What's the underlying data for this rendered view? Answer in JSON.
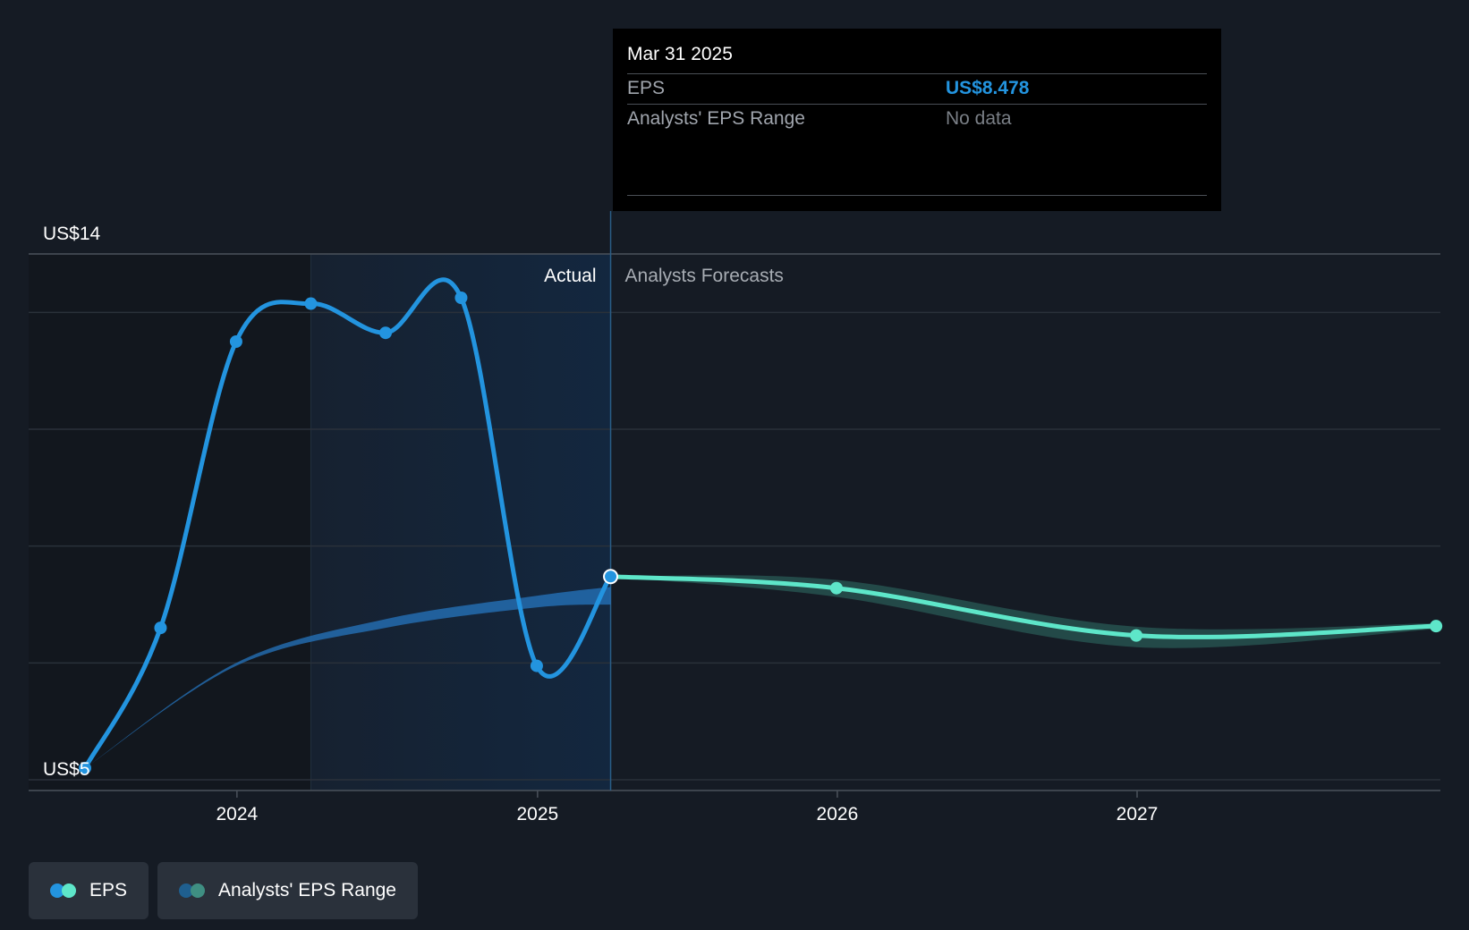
{
  "chart_data": {
    "type": "line",
    "y_axis": {
      "labels": [
        "US$14",
        "US$5"
      ],
      "range": [
        5,
        14
      ],
      "gridlines": [
        5,
        7,
        9,
        11,
        13,
        14
      ]
    },
    "x_axis": {
      "tick_labels": [
        "2024",
        "2025",
        "2026",
        "2027"
      ],
      "range": [
        "2023-06-30",
        "2027-12-31"
      ]
    },
    "regions": {
      "actual_label": "Actual",
      "forecast_label": "Analysts Forecasts",
      "divider_date": "2025-03-31"
    },
    "series": [
      {
        "name": "EPS",
        "kind": "actual",
        "color": "#2394df",
        "points": [
          {
            "x": "2023-06-30",
            "y": 5.2
          },
          {
            "x": "2023-09-30",
            "y": 7.6
          },
          {
            "x": "2023-12-31",
            "y": 12.5
          },
          {
            "x": "2024-03-31",
            "y": 13.15
          },
          {
            "x": "2024-06-30",
            "y": 12.65
          },
          {
            "x": "2024-09-30",
            "y": 13.25
          },
          {
            "x": "2024-12-31",
            "y": 6.95
          },
          {
            "x": "2025-03-31",
            "y": 8.478
          }
        ]
      },
      {
        "name": "EPS",
        "kind": "forecast",
        "color": "#5ee6c9",
        "points": [
          {
            "x": "2025-03-31",
            "y": 8.478
          },
          {
            "x": "2025-12-31",
            "y": 8.28
          },
          {
            "x": "2026-12-31",
            "y": 7.47
          },
          {
            "x": "2027-12-31",
            "y": 7.63
          }
        ]
      }
    ],
    "analyst_range_actual": {
      "name": "Analysts' EPS Range",
      "color": "#2576bf",
      "upper": [
        {
          "x": "2023-06-30",
          "y": 5.2
        },
        {
          "x": "2023-12-31",
          "y": 7.0
        },
        {
          "x": "2024-06-30",
          "y": 7.75
        },
        {
          "x": "2024-12-31",
          "y": 8.15
        },
        {
          "x": "2025-03-31",
          "y": 8.3
        }
      ],
      "lower": [
        {
          "x": "2023-06-30",
          "y": 5.2
        },
        {
          "x": "2023-12-31",
          "y": 6.95
        },
        {
          "x": "2024-06-30",
          "y": 7.6
        },
        {
          "x": "2024-12-31",
          "y": 7.95
        },
        {
          "x": "2025-03-31",
          "y": 8.0
        }
      ]
    },
    "analyst_range_forecast": {
      "name": "Analysts' EPS Range",
      "color": "#2f6f66",
      "upper": [
        {
          "x": "2025-03-31",
          "y": 8.48
        },
        {
          "x": "2025-12-31",
          "y": 8.42
        },
        {
          "x": "2026-12-31",
          "y": 7.62
        },
        {
          "x": "2027-12-31",
          "y": 7.68
        }
      ],
      "lower": [
        {
          "x": "2025-03-31",
          "y": 8.47
        },
        {
          "x": "2025-12-31",
          "y": 8.13
        },
        {
          "x": "2026-12-31",
          "y": 7.27
        },
        {
          "x": "2027-12-31",
          "y": 7.58
        }
      ]
    },
    "highlight_point": {
      "x": "2025-03-31",
      "y": 8.478
    }
  },
  "tooltip": {
    "date": "Mar 31 2025",
    "rows": [
      {
        "label": "EPS",
        "value": "US$8.478"
      },
      {
        "label": "Analysts' EPS Range",
        "value": "No data"
      }
    ]
  },
  "legend": [
    {
      "label": "EPS",
      "colors": [
        "#2394df",
        "#5ee6c9"
      ]
    },
    {
      "label": "Analysts' EPS Range",
      "colors": [
        "#1f5f8f",
        "#3f8f82"
      ]
    }
  ]
}
